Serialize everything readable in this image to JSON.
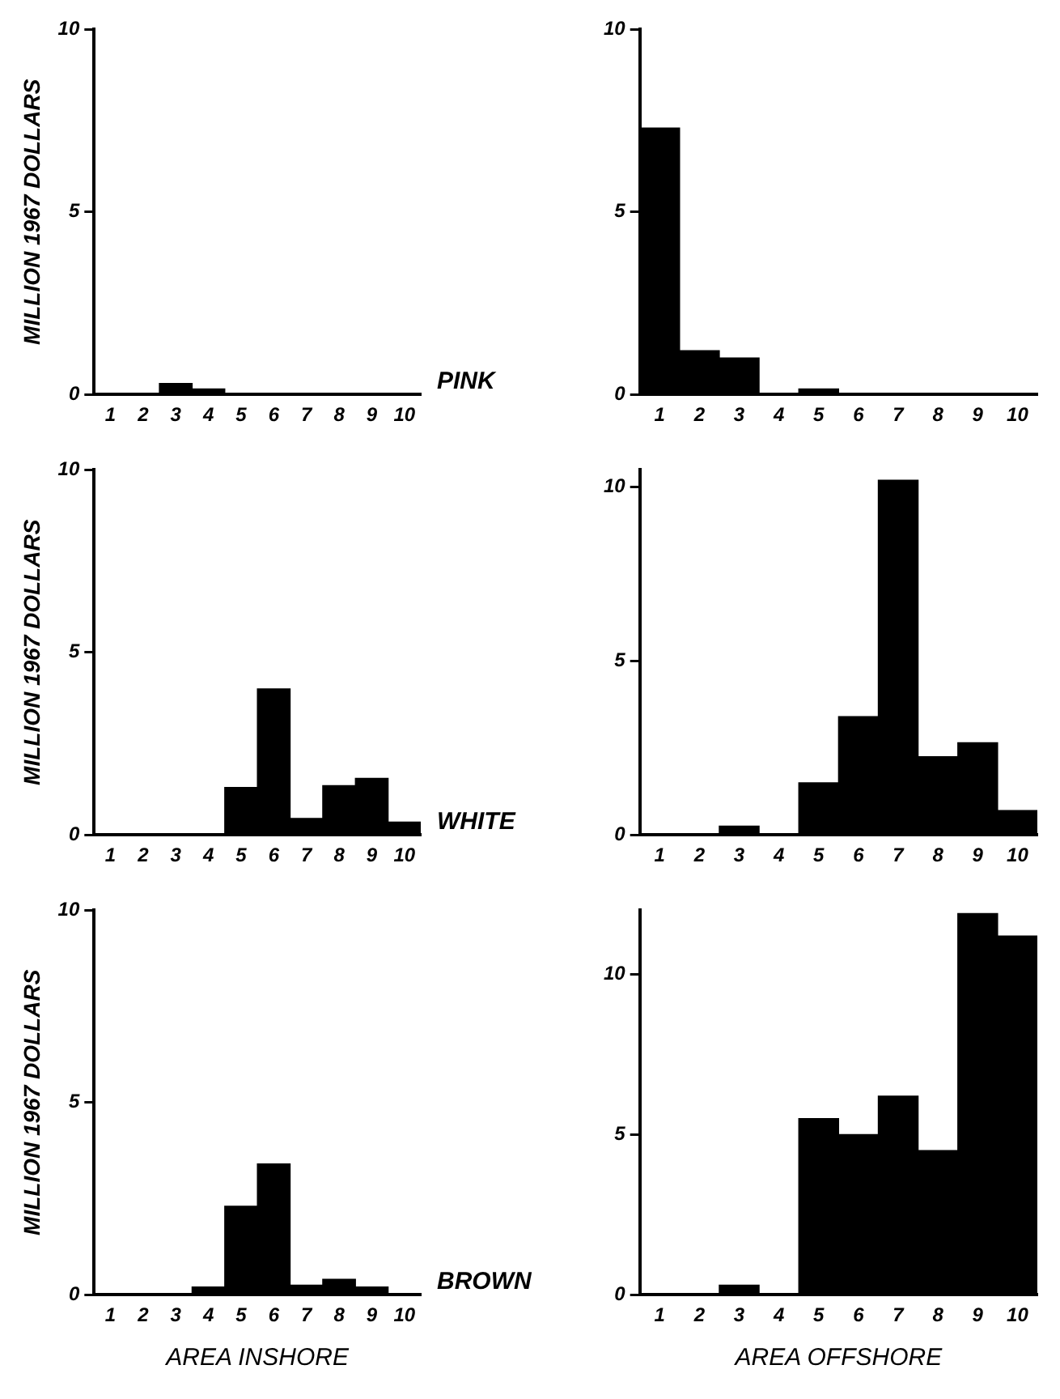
{
  "chart_data": [
    {
      "type": "bar",
      "ylabel": "MILLION 1967 DOLLARS",
      "annotations": [
        "PINK"
      ],
      "categories": [
        "1",
        "2",
        "3",
        "4",
        "5",
        "6",
        "7",
        "8",
        "9",
        "10"
      ],
      "values": [
        0,
        0,
        0.3,
        0.15,
        0,
        0,
        0,
        0,
        0,
        0
      ],
      "color": "#000000",
      "ylim": [
        0,
        10
      ],
      "yticks": [
        0,
        5,
        10
      ],
      "grid": false,
      "legend": false
    },
    {
      "type": "bar",
      "categories": [
        "1",
        "2",
        "3",
        "4",
        "5",
        "6",
        "7",
        "8",
        "9",
        "10"
      ],
      "values": [
        7.3,
        1.2,
        1.0,
        0,
        0.15,
        0,
        0,
        0,
        0,
        0
      ],
      "color": "#000000",
      "ylim": [
        0,
        10
      ],
      "yticks": [
        0,
        5,
        10
      ],
      "grid": false,
      "legend": false
    },
    {
      "type": "bar",
      "ylabel": "MILLION 1967 DOLLARS",
      "annotations": [
        "WHITE"
      ],
      "categories": [
        "1",
        "2",
        "3",
        "4",
        "5",
        "6",
        "7",
        "8",
        "9",
        "10"
      ],
      "values": [
        0,
        0,
        0,
        0,
        1.3,
        4.0,
        0.45,
        1.35,
        1.55,
        0.35
      ],
      "color": "#000000",
      "ylim": [
        0,
        10
      ],
      "yticks": [
        0,
        5,
        10
      ],
      "grid": false,
      "legend": false
    },
    {
      "type": "bar",
      "categories": [
        "1",
        "2",
        "3",
        "4",
        "5",
        "6",
        "7",
        "8",
        "9",
        "10"
      ],
      "values": [
        0,
        0,
        0.25,
        0,
        1.5,
        3.4,
        10.2,
        2.25,
        2.65,
        0.7
      ],
      "color": "#000000",
      "ylim": [
        0,
        10.5
      ],
      "yticks": [
        0,
        5,
        10
      ],
      "grid": false,
      "legend": false
    },
    {
      "type": "bar",
      "ylabel": "MILLION 1967 DOLLARS",
      "xlabel": "AREA INSHORE",
      "annotations": [
        "BROWN"
      ],
      "categories": [
        "1",
        "2",
        "3",
        "4",
        "5",
        "6",
        "7",
        "8",
        "9",
        "10"
      ],
      "values": [
        0,
        0,
        0,
        0.2,
        2.3,
        3.4,
        0.25,
        0.4,
        0.2,
        0
      ],
      "color": "#000000",
      "ylim": [
        0,
        10
      ],
      "yticks": [
        0,
        5,
        10
      ],
      "grid": false,
      "legend": false
    },
    {
      "type": "bar",
      "xlabel": "AREA OFFSHORE",
      "categories": [
        "1",
        "2",
        "3",
        "4",
        "5",
        "6",
        "7",
        "8",
        "9",
        "10"
      ],
      "values": [
        0,
        0,
        0.3,
        0,
        5.5,
        5.0,
        6.2,
        4.5,
        11.9,
        11.2
      ],
      "color": "#000000",
      "ylim": [
        0,
        12
      ],
      "yticks": [
        0,
        5,
        10
      ],
      "grid": false,
      "legend": false
    }
  ]
}
